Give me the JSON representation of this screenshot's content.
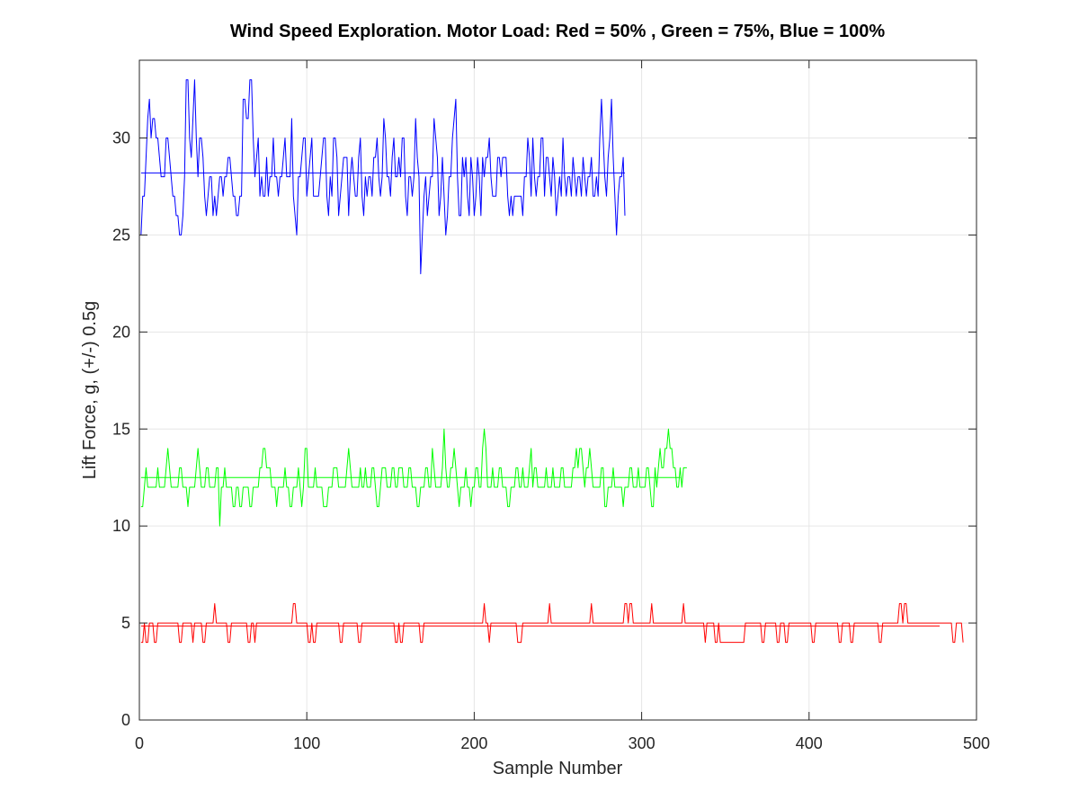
{
  "chart_data": {
    "type": "line",
    "title": "Wind Speed Exploration. Motor Load: Red = 50% , Green = 75%, Blue = 100%",
    "xlabel": "Sample Number",
    "ylabel": "Lift Force, g, (+/-) 0.5g",
    "xlim": [
      0,
      500
    ],
    "ylim": [
      0,
      34
    ],
    "xticks": [
      0,
      100,
      200,
      300,
      400,
      500
    ],
    "yticks": [
      0,
      5,
      10,
      15,
      20,
      25,
      30
    ],
    "xtick_labels": [
      "0",
      "100",
      "200",
      "300",
      "400",
      "500"
    ],
    "ytick_labels": [
      "0",
      "5",
      "10",
      "15",
      "20",
      "25",
      "30"
    ],
    "grid": true,
    "series": [
      {
        "color": "#ff0000",
        "start": 1,
        "values": [
          4,
          4,
          5,
          4,
          4,
          5,
          5,
          5,
          4,
          4,
          5,
          5,
          5,
          5,
          5,
          5,
          5,
          5,
          5,
          5,
          5,
          5,
          5,
          4,
          4,
          5,
          5,
          5,
          5,
          5,
          5,
          4,
          5,
          5,
          5,
          5,
          5,
          4,
          4,
          5,
          5,
          5,
          5,
          5,
          6,
          5,
          5,
          5,
          5,
          5,
          5,
          5,
          4,
          4,
          5,
          5,
          5,
          5,
          5,
          5,
          5,
          5,
          5,
          5,
          4,
          4,
          5,
          5,
          4,
          5,
          5,
          5,
          5,
          5,
          5,
          5,
          5,
          5,
          5,
          5,
          5,
          5,
          5,
          5,
          5,
          5,
          5,
          5,
          5,
          5,
          5,
          6,
          6,
          5,
          5,
          5,
          5,
          5,
          5,
          5,
          4,
          4,
          5,
          4,
          4,
          5,
          5,
          5,
          5,
          5,
          5,
          5,
          5,
          5,
          5,
          5,
          5,
          5,
          5,
          4,
          4,
          5,
          5,
          5,
          5,
          5,
          5,
          5,
          5,
          5,
          4,
          4,
          5,
          5,
          5,
          5,
          5,
          5,
          5,
          5,
          5,
          5,
          5,
          5,
          5,
          5,
          5,
          5,
          5,
          5,
          5,
          5,
          4,
          4,
          5,
          4,
          4,
          5,
          5,
          5,
          5,
          5,
          5,
          5,
          5,
          5,
          5,
          4,
          4,
          5,
          5,
          5,
          5,
          5,
          5,
          5,
          5,
          5,
          5,
          5,
          5,
          5,
          5,
          5,
          5,
          5,
          5,
          5,
          5,
          5,
          5,
          5,
          5,
          5,
          5,
          5,
          5,
          5,
          5,
          5,
          5,
          5,
          5,
          5,
          5,
          6,
          5,
          5,
          4,
          5,
          5,
          5,
          5,
          5,
          5,
          5,
          5,
          5,
          5,
          5,
          5,
          5,
          5,
          5,
          5,
          4,
          4,
          4,
          5,
          5,
          5,
          5,
          5,
          5,
          5,
          5,
          5,
          5,
          5,
          5,
          5,
          5,
          5,
          5,
          6,
          5,
          5,
          5,
          5,
          5,
          5,
          5,
          5,
          5,
          5,
          5,
          5,
          5,
          5,
          5,
          5,
          5,
          5,
          5,
          5,
          5,
          5,
          5,
          5,
          6,
          5,
          5,
          5,
          5,
          5,
          5,
          5,
          5,
          5,
          5,
          5,
          5,
          5,
          5,
          5,
          5,
          5,
          5,
          5,
          6,
          6,
          5,
          6,
          6,
          5,
          5,
          5,
          5,
          5,
          5,
          5,
          5,
          5,
          5,
          5,
          6,
          5,
          5,
          5,
          5,
          5,
          5,
          5,
          5,
          5,
          5,
          5,
          5,
          5,
          5,
          5,
          5,
          5,
          5,
          6,
          5,
          5,
          5,
          5,
          5,
          5,
          5,
          5,
          5,
          5,
          5,
          5,
          4,
          5,
          5,
          5,
          5,
          5,
          4,
          4,
          5,
          4,
          4,
          4,
          4,
          4,
          4,
          4,
          4,
          4,
          4,
          4,
          4,
          4,
          4,
          4,
          5,
          5,
          5,
          5,
          5,
          5,
          5,
          5,
          5,
          5,
          4,
          4,
          5,
          5,
          5,
          5,
          5,
          5,
          5,
          4,
          4,
          5,
          5,
          5,
          4,
          4,
          5,
          5,
          5,
          5,
          5,
          5,
          5,
          5,
          5,
          5,
          5,
          5,
          5,
          5,
          4,
          4,
          5,
          5,
          5,
          5,
          5,
          5,
          5,
          5,
          5,
          5,
          5,
          5,
          5,
          5,
          4,
          4,
          5,
          5,
          5,
          5,
          5,
          4,
          4,
          5,
          5,
          5,
          5,
          5,
          5,
          5,
          5,
          5,
          5,
          5,
          5,
          5,
          5,
          5,
          4,
          4,
          5,
          5,
          5,
          5,
          5,
          5,
          5,
          5,
          5,
          5,
          6,
          6,
          5,
          6,
          6,
          5,
          5,
          5,
          5,
          5,
          5,
          5,
          5,
          5,
          5,
          5,
          5,
          5,
          5,
          5,
          5,
          5,
          5,
          5,
          5,
          5,
          5,
          5,
          5,
          5,
          5,
          5,
          4,
          4,
          5,
          5,
          5,
          5,
          4
        ]
      },
      {
        "color": "#00ff00",
        "start": 1,
        "values": [
          11,
          11,
          12,
          13,
          12,
          12,
          12,
          12,
          12,
          12,
          13,
          12,
          12,
          12,
          12,
          13,
          14,
          13,
          12,
          12,
          12,
          12,
          12,
          13,
          13,
          12,
          12,
          12,
          11,
          12,
          12,
          12,
          12,
          13,
          14,
          13,
          12,
          12,
          12,
          13,
          13,
          12,
          12,
          12,
          12,
          13,
          13,
          10,
          12,
          12,
          13,
          12,
          12,
          12,
          12,
          11,
          11,
          12,
          12,
          11,
          11,
          12,
          12,
          12,
          12,
          11,
          11,
          12,
          12,
          12,
          12,
          13,
          13,
          14,
          14,
          13,
          13,
          13,
          12,
          12,
          12,
          11,
          12,
          12,
          12,
          12,
          13,
          12,
          12,
          11,
          11,
          12,
          12,
          12,
          13,
          12,
          11,
          12,
          14,
          14,
          12,
          12,
          12,
          12,
          13,
          12,
          12,
          12,
          12,
          11,
          11,
          11,
          12,
          12,
          12,
          13,
          13,
          13,
          12,
          12,
          12,
          12,
          12,
          13,
          14,
          13,
          12,
          12,
          12,
          12,
          12,
          13,
          12,
          12,
          13,
          12,
          12,
          12,
          13,
          13,
          12,
          11,
          11,
          12,
          13,
          13,
          13,
          12,
          12,
          12,
          13,
          13,
          12,
          12,
          13,
          13,
          13,
          12,
          12,
          12,
          13,
          13,
          12,
          12,
          12,
          11,
          11,
          12,
          12,
          12,
          13,
          13,
          12,
          12,
          14,
          13,
          12,
          12,
          12,
          12,
          13,
          15,
          13,
          12,
          12,
          13,
          13,
          14,
          13,
          12,
          11,
          12,
          12,
          12,
          13,
          12,
          12,
          11,
          12,
          12,
          13,
          13,
          12,
          12,
          14,
          15,
          14,
          12,
          12,
          12,
          13,
          12,
          12,
          12,
          13,
          13,
          12,
          12,
          12,
          11,
          11,
          12,
          12,
          12,
          13,
          13,
          12,
          12,
          13,
          12,
          12,
          12,
          13,
          14,
          12,
          13,
          13,
          12,
          12,
          12,
          12,
          12,
          13,
          12,
          12,
          12,
          13,
          12,
          12,
          12,
          12,
          13,
          13,
          12,
          12,
          12,
          12,
          12,
          13,
          13,
          14,
          13,
          14,
          14,
          13,
          12,
          13,
          13,
          14,
          13,
          12,
          12,
          12,
          12,
          12,
          13,
          13,
          11,
          11,
          12,
          12,
          12,
          13,
          12,
          12,
          12,
          12,
          12,
          11,
          12,
          12,
          12,
          13,
          13,
          12,
          12,
          12,
          13,
          12,
          12,
          12,
          12,
          13,
          13,
          12,
          11,
          11,
          13,
          12,
          13,
          14,
          13,
          13,
          14,
          14,
          15,
          14,
          14,
          13,
          13,
          12,
          12,
          13,
          12,
          13,
          13,
          13
        ]
      },
      {
        "color": "#0000ff",
        "start": 1,
        "values": [
          25,
          27,
          27,
          29,
          31,
          32,
          30,
          31,
          31,
          30,
          30,
          29,
          28,
          28,
          28,
          30,
          30,
          29,
          28,
          27,
          27,
          26,
          26,
          25,
          25,
          26,
          28,
          33,
          33,
          30,
          29,
          31,
          33,
          30,
          28,
          30,
          30,
          29,
          27,
          26,
          27,
          28,
          28,
          26,
          27,
          26,
          27,
          28,
          28,
          27,
          28,
          28,
          29,
          29,
          28,
          27,
          27,
          26,
          26,
          27,
          27,
          32,
          32,
          31,
          31,
          33,
          33,
          30,
          28,
          29,
          30,
          27,
          28,
          27,
          27,
          29,
          27,
          28,
          28,
          30,
          28,
          28,
          27,
          28,
          28,
          29,
          30,
          28,
          28,
          28,
          31,
          27,
          26,
          25,
          28,
          28,
          29,
          30,
          30,
          27,
          28,
          29,
          30,
          27,
          27,
          27,
          27,
          28,
          29,
          30,
          30,
          27,
          26,
          28,
          27,
          30,
          30,
          29,
          26,
          27,
          28,
          29,
          29,
          29,
          26,
          28,
          29,
          28,
          27,
          27,
          29,
          30,
          27,
          26,
          28,
          27,
          28,
          28,
          27,
          29,
          29,
          30,
          28,
          27,
          28,
          31,
          30,
          28,
          28,
          27,
          29,
          30,
          28,
          28,
          29,
          28,
          30,
          30,
          27,
          26,
          28,
          28,
          27,
          28,
          31,
          29,
          28,
          23,
          25,
          27,
          28,
          26,
          27,
          28,
          28,
          31,
          30,
          29,
          26,
          27,
          29,
          27,
          25,
          26,
          28,
          28,
          30,
          31,
          32,
          28,
          26,
          26,
          29,
          28,
          29,
          27,
          26,
          29,
          28,
          26,
          27,
          29,
          28,
          26,
          29,
          28,
          29,
          29,
          30,
          28,
          27,
          27,
          27,
          29,
          29,
          28,
          29,
          29,
          29,
          27,
          26,
          27,
          26,
          27,
          27,
          27,
          27,
          27,
          26,
          28,
          28,
          30,
          29,
          27,
          30,
          28,
          27,
          28,
          28,
          30,
          30,
          27,
          29,
          29,
          28,
          27,
          29,
          28,
          26,
          27,
          28,
          27,
          30,
          28,
          27,
          28,
          28,
          27,
          29,
          28,
          27,
          28,
          28,
          27,
          29,
          28,
          27,
          28,
          28,
          29,
          27,
          27,
          28,
          27,
          30,
          32,
          30,
          28,
          27,
          29,
          30,
          32,
          29,
          27,
          25,
          27,
          28,
          28,
          29,
          26
        ]
      }
    ],
    "reference_lines": [
      {
        "color": "#ff0000",
        "y": 4.85,
        "x_start": 1,
        "x_end": 478
      },
      {
        "color": "#00ff00",
        "y": 12.5,
        "x_start": 1,
        "x_end": 323
      },
      {
        "color": "#0000ff",
        "y": 28.2,
        "x_start": 1,
        "x_end": 290
      }
    ]
  }
}
